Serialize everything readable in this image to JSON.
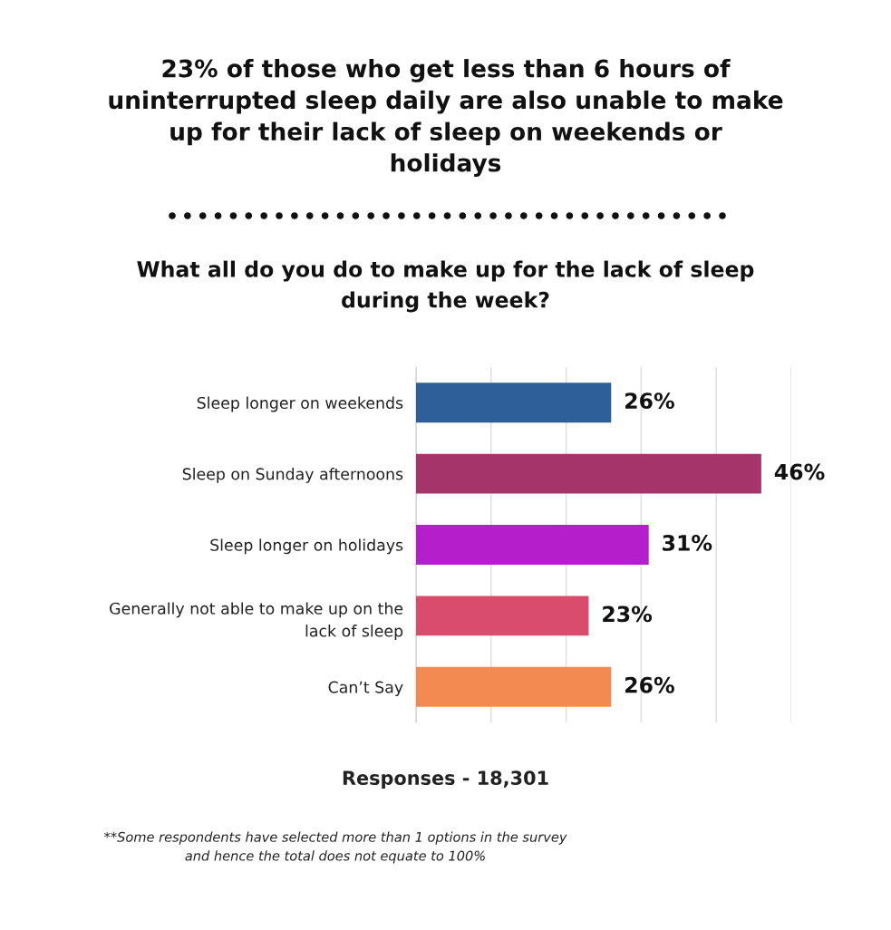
{
  "chart_data": {
    "type": "bar",
    "orientation": "horizontal",
    "title": "23% of those who get less than 6 hours of uninterrupted sleep daily are also unable to make up for their lack of sleep on weekends or holidays",
    "subtitle": "What all do you do to make up for the lack of sleep during the week?",
    "categories": [
      "Sleep longer on weekends",
      "Sleep on Sunday afternoons",
      "Sleep longer on holidays",
      "Generally not able to make up on the lack of sleep",
      "Can’t Say"
    ],
    "values": [
      26,
      46,
      31,
      23,
      26
    ],
    "value_labels": [
      "26%",
      "46%",
      "31%",
      "23%",
      "26%"
    ],
    "colors": [
      "#2e5f98",
      "#a4346a",
      "#b51ecb",
      "#d94c6e",
      "#f28a52"
    ],
    "xlim": [
      0,
      50
    ],
    "xticks": [
      {
        "value": 0,
        "label": null
      },
      {
        "value": 10,
        "label": null
      },
      {
        "value": 20,
        "label": null
      },
      {
        "value": 30,
        "label": null
      },
      {
        "value": 40,
        "label": null
      },
      {
        "value": 50,
        "label": null
      }
    ],
    "grid": "x",
    "tick_labels": "y",
    "annotations": [
      "Responses - 18,301",
      "**Some respondents have selected more than 1 options in the survey and hence the total does not equate to 100%"
    ]
  }
}
